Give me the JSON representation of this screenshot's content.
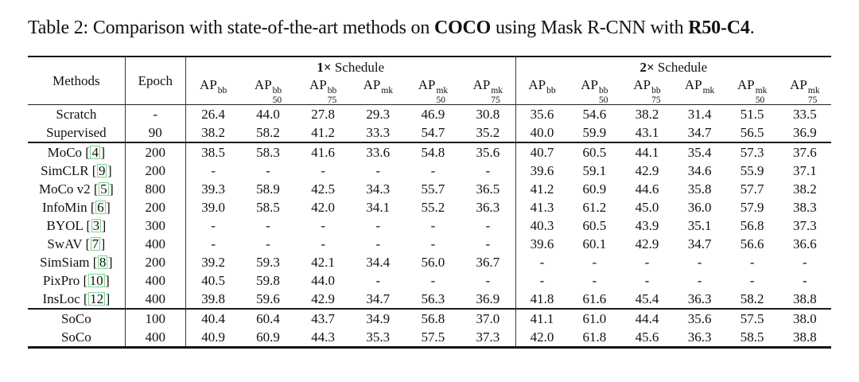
{
  "caption": {
    "prefix": "Table 2: Comparison with state-of-the-art methods on ",
    "dataset": "COCO",
    "mid": " using Mask R-CNN with ",
    "model": "R50-C4",
    "suffix": "."
  },
  "colors": {
    "citation_box": "#76d98a",
    "rule": "#161616"
  },
  "table": {
    "methods_header": "Methods",
    "epoch_header": "Epoch",
    "groups": [
      {
        "bold": "1×",
        "label": " Schedule"
      },
      {
        "bold": "2×",
        "label": " Schedule"
      }
    ],
    "metrics": [
      {
        "base": "AP",
        "sup": "bb",
        "sub": ""
      },
      {
        "base": "AP",
        "sup": "bb",
        "sub": "50"
      },
      {
        "base": "AP",
        "sup": "bb",
        "sub": "75"
      },
      {
        "base": "AP",
        "sup": "mk",
        "sub": ""
      },
      {
        "base": "AP",
        "sup": "mk",
        "sub": "50"
      },
      {
        "base": "AP",
        "sup": "mk",
        "sub": "75"
      }
    ],
    "sections": [
      {
        "rows": [
          {
            "method": "Scratch",
            "cite": null,
            "epoch": "-",
            "values": [
              "26.4",
              "44.0",
              "27.8",
              "29.3",
              "46.9",
              "30.8",
              "35.6",
              "54.6",
              "38.2",
              "31.4",
              "51.5",
              "33.5"
            ],
            "bold_cols": [],
            "bold_row": false
          },
          {
            "method": "Supervised",
            "cite": null,
            "epoch": "90",
            "values": [
              "38.2",
              "58.2",
              "41.2",
              "33.3",
              "54.7",
              "35.2",
              "40.0",
              "59.9",
              "43.1",
              "34.7",
              "56.5",
              "36.9"
            ],
            "bold_cols": [],
            "bold_row": false
          }
        ]
      },
      {
        "rows": [
          {
            "method": "MoCo",
            "cite": "4",
            "epoch": "200",
            "values": [
              "38.5",
              "58.3",
              "41.6",
              "33.6",
              "54.8",
              "35.6",
              "40.7",
              "60.5",
              "44.1",
              "35.4",
              "57.3",
              "37.6"
            ],
            "bold_cols": [],
            "bold_row": false
          },
          {
            "method": "SimCLR",
            "cite": "9",
            "epoch": "200",
            "values": [
              "-",
              "-",
              "-",
              "-",
              "-",
              "-",
              "39.6",
              "59.1",
              "42.9",
              "34.6",
              "55.9",
              "37.1"
            ],
            "bold_cols": [],
            "bold_row": false
          },
          {
            "method": "MoCo v2",
            "cite": "5",
            "epoch": "800",
            "values": [
              "39.3",
              "58.9",
              "42.5",
              "34.3",
              "55.7",
              "36.5",
              "41.2",
              "60.9",
              "44.6",
              "35.8",
              "57.7",
              "38.2"
            ],
            "bold_cols": [],
            "bold_row": false
          },
          {
            "method": "InfoMin",
            "cite": "6",
            "epoch": "200",
            "values": [
              "39.0",
              "58.5",
              "42.0",
              "34.1",
              "55.2",
              "36.3",
              "41.3",
              "61.2",
              "45.0",
              "36.0",
              "57.9",
              "38.3"
            ],
            "bold_cols": [],
            "bold_row": false
          },
          {
            "method": "BYOL",
            "cite": "3",
            "epoch": "300",
            "values": [
              "-",
              "-",
              "-",
              "-",
              "-",
              "-",
              "40.3",
              "60.5",
              "43.9",
              "35.1",
              "56.8",
              "37.3"
            ],
            "bold_cols": [],
            "bold_row": false
          },
          {
            "method": "SwAV",
            "cite": "7",
            "epoch": "400",
            "values": [
              "-",
              "-",
              "-",
              "-",
              "-",
              "-",
              "39.6",
              "60.1",
              "42.9",
              "34.7",
              "56.6",
              "36.6"
            ],
            "bold_cols": [],
            "bold_row": false
          },
          {
            "method": "SimSiam",
            "cite": "8",
            "epoch": "200",
            "values": [
              "39.2",
              "59.3",
              "42.1",
              "34.4",
              "56.0",
              "36.7",
              "-",
              "-",
              "-",
              "-",
              "-",
              "-"
            ],
            "bold_cols": [],
            "bold_row": false
          },
          {
            "method": "PixPro",
            "cite": "10",
            "epoch": "400",
            "values": [
              "40.5",
              "59.8",
              "44.0",
              "-",
              "-",
              "-",
              "-",
              "-",
              "-",
              "-",
              "-",
              "-"
            ],
            "bold_cols": [],
            "bold_row": false
          },
          {
            "method": "InsLoc",
            "cite": "12",
            "epoch": "400",
            "values": [
              "39.8",
              "59.6",
              "42.9",
              "34.7",
              "56.3",
              "36.9",
              "41.8",
              "61.6",
              "45.4",
              "36.3",
              "58.2",
              "38.8"
            ],
            "bold_cols": [
              9,
              11
            ],
            "bold_row": false
          }
        ]
      },
      {
        "rows": [
          {
            "method": "SoCo",
            "cite": null,
            "epoch": "100",
            "values": [
              "40.4",
              "60.4",
              "43.7",
              "34.9",
              "56.8",
              "37.0",
              "41.1",
              "61.0",
              "44.4",
              "35.6",
              "57.5",
              "38.0"
            ],
            "bold_cols": [],
            "bold_row": false
          },
          {
            "method": "SoCo",
            "cite": null,
            "epoch": "400",
            "values": [
              "40.9",
              "60.9",
              "44.3",
              "35.3",
              "57.5",
              "37.3",
              "42.0",
              "61.8",
              "45.6",
              "36.3",
              "58.5",
              "38.8"
            ],
            "bold_cols": [],
            "bold_row": true
          }
        ]
      }
    ]
  }
}
